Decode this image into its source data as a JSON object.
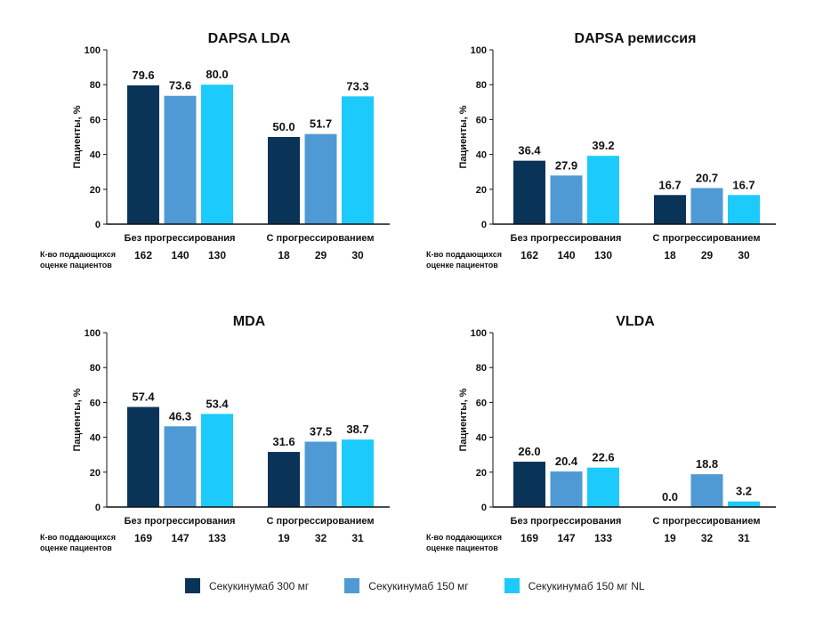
{
  "colors": [
    "#0a3358",
    "#4f9ad4",
    "#1ccbfb"
  ],
  "legend": [
    "Секукинумаб 300 мг",
    "Секукинумаб 150 мг",
    "Секукинумаб 150 мг NL"
  ],
  "chart_data": [
    {
      "type": "bar",
      "title": "DAPSA LDA",
      "ylabel": "Пациенты, %",
      "ylim": [
        0,
        100
      ],
      "yticks": [
        0,
        20,
        40,
        60,
        80,
        100
      ],
      "categories": [
        "Без прогрессирования",
        "С прогрессированием"
      ],
      "series": [
        {
          "name": "Секукинумаб 300 мг",
          "values": [
            79.6,
            50.0
          ],
          "labels": [
            "79.6",
            "50.0"
          ]
        },
        {
          "name": "Секукинумаб 150 мг",
          "values": [
            73.6,
            51.7
          ],
          "labels": [
            "73.6",
            "51.7"
          ]
        },
        {
          "name": "Секукинумаб 150 мг NL",
          "values": [
            80.0,
            73.3
          ],
          "labels": [
            "80.0",
            "73.3"
          ]
        }
      ],
      "count_label": [
        "К-во поддающихся",
        "оценке пациентов"
      ],
      "counts": [
        [
          "162",
          "140",
          "130"
        ],
        [
          "18",
          "29",
          "30"
        ]
      ],
      "legend_position": "bottom"
    },
    {
      "type": "bar",
      "title": "DAPSA ремиссия",
      "ylabel": "Пациенты, %",
      "ylim": [
        0,
        100
      ],
      "yticks": [
        0,
        20,
        40,
        60,
        80,
        100
      ],
      "categories": [
        "Без прогрессирования",
        "С прогрессированием"
      ],
      "series": [
        {
          "name": "Секукинумаб 300 мг",
          "values": [
            36.4,
            16.7
          ],
          "labels": [
            "36.4",
            "16.7"
          ]
        },
        {
          "name": "Секукинумаб 150 мг",
          "values": [
            27.9,
            20.7
          ],
          "labels": [
            "27.9",
            "20.7"
          ]
        },
        {
          "name": "Секукинумаб 150 мг NL",
          "values": [
            39.2,
            16.7
          ],
          "labels": [
            "39.2",
            "16.7"
          ]
        }
      ],
      "count_label": [
        "К-во поддающихся",
        "оценке пациентов"
      ],
      "counts": [
        [
          "162",
          "140",
          "130"
        ],
        [
          "18",
          "29",
          "30"
        ]
      ],
      "legend_position": "bottom"
    },
    {
      "type": "bar",
      "title": "MDA",
      "ylabel": "Пациенты, %",
      "ylim": [
        0,
        100
      ],
      "yticks": [
        0,
        20,
        40,
        60,
        80,
        100
      ],
      "categories": [
        "Без прогрессирования",
        "С прогрессированием"
      ],
      "series": [
        {
          "name": "Секукинумаб 300 мг",
          "values": [
            57.4,
            31.6
          ],
          "labels": [
            "57.4",
            "31.6"
          ]
        },
        {
          "name": "Секукинумаб 150 мг",
          "values": [
            46.3,
            37.5
          ],
          "labels": [
            "46.3",
            "37.5"
          ]
        },
        {
          "name": "Секукинумаб 150 мг NL",
          "values": [
            53.4,
            38.7
          ],
          "labels": [
            "53.4",
            "38.7"
          ]
        }
      ],
      "count_label": [
        "К-во поддающихся",
        "оценке пациентов"
      ],
      "counts": [
        [
          "169",
          "147",
          "133"
        ],
        [
          "19",
          "32",
          "31"
        ]
      ],
      "legend_position": "bottom"
    },
    {
      "type": "bar",
      "title": "VLDA",
      "ylabel": "Пациенты, %",
      "ylim": [
        0,
        100
      ],
      "yticks": [
        0,
        20,
        40,
        60,
        80,
        100
      ],
      "categories": [
        "Без прогрессирования",
        "С прогрессированием"
      ],
      "series": [
        {
          "name": "Секукинумаб 300 мг",
          "values": [
            26.0,
            0.0
          ],
          "labels": [
            "26.0",
            "0.0"
          ]
        },
        {
          "name": "Секукинумаб 150 мг",
          "values": [
            20.4,
            18.8
          ],
          "labels": [
            "20.4",
            "18.8"
          ]
        },
        {
          "name": "Секукинумаб 150 мг NL",
          "values": [
            22.6,
            3.2
          ],
          "labels": [
            "22.6",
            "3.2"
          ]
        }
      ],
      "count_label": [
        "К-во поддающихся",
        "оценке пациентов"
      ],
      "counts": [
        [
          "169",
          "147",
          "133"
        ],
        [
          "19",
          "32",
          "31"
        ]
      ],
      "legend_position": "bottom"
    }
  ]
}
